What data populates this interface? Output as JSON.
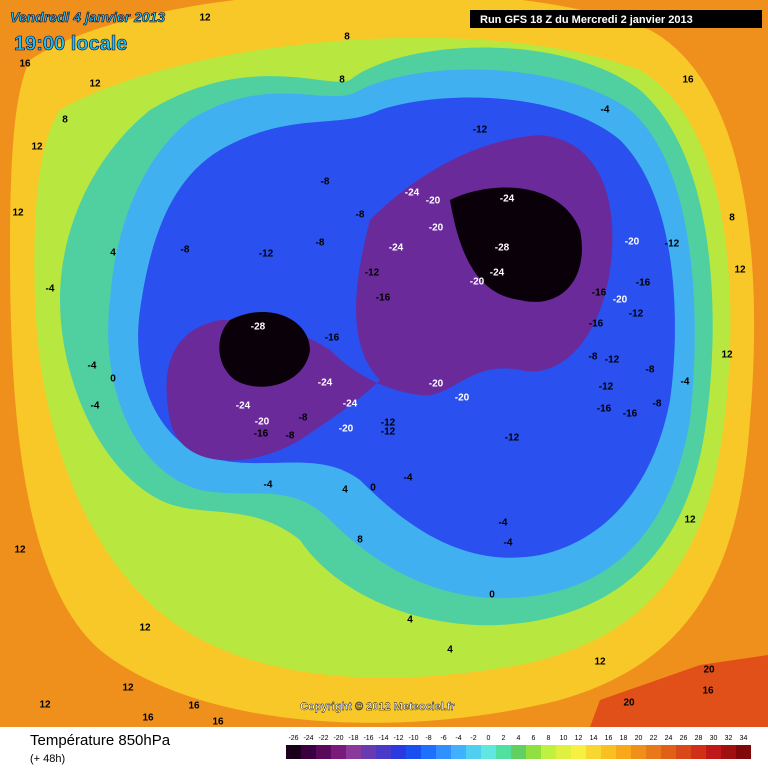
{
  "header": {
    "date": "Vendredi 4 janvier 2013",
    "time": "19:00 locale",
    "run": "Run GFS 18 Z du Mercredi 2 janvier 2013"
  },
  "copyright": "Copyright © 2012 Meteociel.fr",
  "footer": {
    "title": "Température 850hPa",
    "lead": "(+ 48h)"
  },
  "scale": {
    "values": [
      -26,
      -24,
      -22,
      -20,
      -18,
      -16,
      -14,
      -12,
      -10,
      -8,
      -6,
      -4,
      -2,
      0,
      2,
      4,
      6,
      8,
      10,
      12,
      14,
      16,
      18,
      20,
      22,
      24,
      26,
      28,
      30,
      32,
      34
    ],
    "colors": [
      "#1a001a",
      "#3a0040",
      "#5a0a5a",
      "#7a1a7a",
      "#8a3a9a",
      "#6a3ab0",
      "#4a3ac8",
      "#2a3ae0",
      "#1a50f0",
      "#2070ff",
      "#3090ff",
      "#40b0ff",
      "#50d0f0",
      "#60e8e0",
      "#50e0a0",
      "#60d060",
      "#90e040",
      "#c0f040",
      "#e0f040",
      "#f8f040",
      "#f8d830",
      "#f8c020",
      "#f8a818",
      "#f09018",
      "#e87818",
      "#e06018",
      "#d84818",
      "#d03018",
      "#c01818",
      "#a01010",
      "#800808"
    ]
  },
  "contour_labels": [
    12,
    8,
    16,
    12,
    8,
    12,
    8,
    16,
    -12,
    -4,
    -8,
    12,
    -8,
    -24,
    -20,
    -24,
    -20,
    -24,
    -28,
    -24,
    -20,
    -12,
    -16,
    -12,
    -8,
    -8,
    -28,
    -16,
    -24,
    -24,
    -20,
    -16,
    -8,
    -8,
    -24,
    -20,
    -12,
    -12,
    -20,
    -20,
    -12,
    -16,
    -16,
    -12,
    -8,
    -12,
    -8,
    -16,
    -12,
    -16,
    -20,
    -16,
    -20,
    -12,
    -4,
    -8,
    -4,
    -4,
    4,
    0,
    -4,
    -4,
    0,
    4,
    -4,
    -4,
    0,
    -4,
    12,
    12,
    8,
    12,
    12,
    12,
    16,
    16,
    12,
    12,
    4,
    16,
    20,
    20,
    8,
    4,
    16,
    12
  ]
}
